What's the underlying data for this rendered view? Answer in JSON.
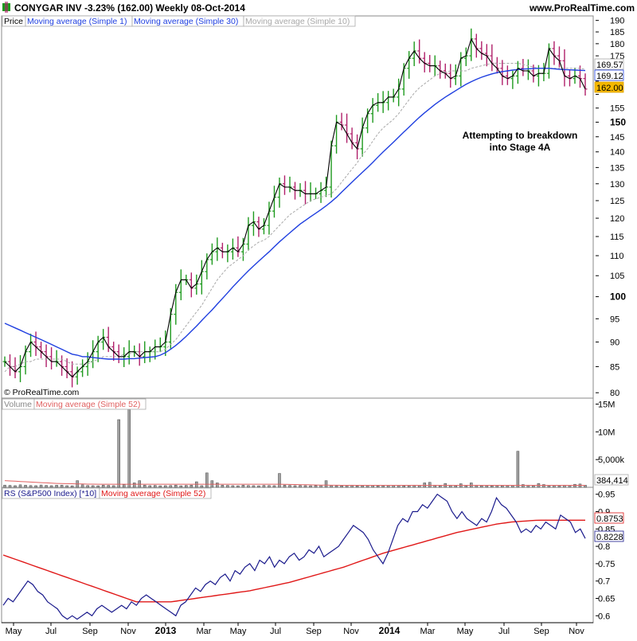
{
  "header": {
    "title": "CONYGAR INV   -3.23% (162.00)   Weekly   08-Oct-2014",
    "site": "www.ProRealTime.com"
  },
  "copyright": "© ProRealTime.com",
  "colors": {
    "up_bar": "#1e9a1e",
    "down_bar": "#b0206a",
    "sma1": "#000000",
    "sma30": "#1f3fe0",
    "sma10": "#a8a8a8",
    "volume_bar": "#a0a0a0",
    "volume_ma": "#e06060",
    "rs_line": "#1a1a8c",
    "rs_ma": "#e01818"
  },
  "chart_data": [
    {
      "type": "line",
      "panel": "price",
      "legend": [
        "Price",
        "Moving average (Simple 1)",
        "Moving average (Simple 30)",
        "Moving average (Simple 10)"
      ],
      "y_scale": "log",
      "ylim": [
        79,
        192
      ],
      "y_ticks": [
        80,
        85,
        90,
        95,
        100,
        105,
        110,
        115,
        120,
        125,
        130,
        135,
        140,
        145,
        150,
        155,
        160,
        165,
        170,
        175,
        180,
        185,
        190
      ],
      "y_ticks_bold": [
        100,
        150
      ],
      "y_tick_labels_hidden": [
        160,
        165,
        170
      ],
      "value_labels": [
        {
          "text": "169.57",
          "series": "sma10"
        },
        {
          "text": "169.12",
          "series": "sma30"
        },
        {
          "text": "162.00",
          "series": "close"
        }
      ],
      "annotation": [
        "Attempting to breakdown",
        "into Stage 4A"
      ],
      "series": [
        {
          "name": "Moving average (Simple 1)",
          "key": "close",
          "values": [
            86,
            85,
            84,
            85,
            88,
            90,
            89,
            88,
            87,
            86,
            86,
            85,
            84,
            83,
            84,
            85,
            86,
            88,
            90,
            91,
            89,
            88,
            87,
            87,
            88,
            88,
            87,
            88,
            88,
            89,
            89,
            90,
            96,
            101,
            104,
            104,
            102,
            103,
            106,
            109,
            111,
            112,
            111,
            111,
            112,
            111,
            113,
            118,
            119,
            117,
            118,
            122,
            126,
            130,
            129,
            129,
            128,
            128,
            127,
            127,
            127,
            128,
            129,
            142,
            150,
            149,
            146,
            143,
            141,
            148,
            153,
            156,
            157,
            157,
            159,
            159,
            162,
            170,
            174,
            177,
            174,
            172,
            171,
            171,
            169,
            168,
            166,
            167,
            174,
            175,
            182,
            178,
            176,
            175,
            172,
            170,
            167,
            166,
            167,
            170,
            169,
            169,
            167,
            168,
            168,
            178,
            175,
            173,
            167,
            166,
            167,
            166,
            162
          ]
        },
        {
          "name": "Moving average (Simple 10)",
          "key": "sma10",
          "values": [
            84,
            85,
            85,
            85.5,
            86,
            86,
            86.5,
            86.5,
            86.5,
            86.5,
            86.5,
            86.5,
            86,
            85.5,
            85.5,
            85.5,
            85.5,
            86,
            86.5,
            87,
            87,
            87,
            87,
            87.5,
            87.5,
            88,
            88,
            88,
            88,
            88,
            88,
            88.5,
            89.5,
            90.5,
            92,
            93.5,
            95,
            96.5,
            98,
            100,
            102,
            104,
            105.5,
            107,
            108,
            109,
            110,
            111.5,
            112.5,
            113.5,
            114,
            115,
            116.5,
            118,
            119.5,
            121,
            122,
            123,
            124,
            125,
            125.5,
            126,
            126.5,
            127,
            128.5,
            130.5,
            132.5,
            134.5,
            136.5,
            139,
            141,
            143.5,
            146,
            148,
            149.5,
            151,
            153,
            155.5,
            158,
            160.5,
            162.5,
            164,
            165.5,
            167,
            168,
            168.5,
            169,
            169,
            169,
            169,
            170,
            170.5,
            171,
            171.5,
            172,
            172,
            172,
            172,
            172,
            172,
            171.5,
            171,
            170.5,
            170,
            170,
            170,
            170,
            170,
            170,
            170,
            170,
            170,
            169.57
          ]
        },
        {
          "name": "Moving average (Simple 30)",
          "key": "sma30",
          "values": [
            94,
            93.5,
            93,
            92.5,
            92,
            91.5,
            91,
            90.5,
            90,
            89.5,
            89,
            88.5,
            88,
            87.5,
            87.3,
            87,
            87,
            86.8,
            86.7,
            86.6,
            86.5,
            86.5,
            86.5,
            86.5,
            86.6,
            86.6,
            86.7,
            86.8,
            86.9,
            87,
            87.3,
            87.8,
            88.5,
            89.3,
            90.2,
            91.2,
            92.3,
            93.4,
            94.6,
            95.8,
            97,
            98.3,
            99.6,
            100.9,
            102.3,
            103.6,
            104.9,
            106.2,
            107.4,
            108.6,
            109.8,
            111,
            112.3,
            113.6,
            114.8,
            116,
            117.2,
            118.4,
            119.4,
            120.4,
            121.4,
            122.4,
            123.5,
            124.7,
            126,
            127.5,
            129,
            130.5,
            132,
            133.5,
            135,
            136.6,
            138.3,
            140,
            141.6,
            143.2,
            144.9,
            146.6,
            148.3,
            150,
            151.7,
            153.3,
            154.8,
            156.3,
            157.7,
            159,
            160.2,
            161.4,
            162.6,
            163.8,
            164.8,
            165.7,
            166.5,
            167.2,
            167.8,
            168.3,
            168.7,
            169,
            169.3,
            169.5,
            169.7,
            169.8,
            169.9,
            170,
            170,
            170,
            169.8,
            169.6,
            169.5,
            169.4,
            169.3,
            169.2,
            169.12
          ]
        }
      ]
    },
    {
      "type": "bar",
      "panel": "volume",
      "legend": [
        "Volume",
        "Moving average (Simple 52)"
      ],
      "ylim": [
        0,
        15500000
      ],
      "y_ticks": [
        5000000,
        10000000,
        15000000
      ],
      "y_tick_labels": [
        "5,000k",
        "10M",
        "15M"
      ],
      "value_label": "384,414",
      "series": [
        {
          "name": "Volume",
          "values": [
            400000,
            350000,
            300000,
            450000,
            380000,
            320000,
            300000,
            420000,
            350000,
            300000,
            380000,
            400000,
            300000,
            280000,
            1200000,
            450000,
            320000,
            300000,
            280000,
            400000,
            350000,
            300000,
            12200000,
            500000,
            14500000,
            800000,
            1200000,
            400000,
            300000,
            350000,
            280000,
            300000,
            320000,
            400000,
            280000,
            350000,
            400000,
            1000000,
            300000,
            2600000,
            1200000,
            800000,
            400000,
            350000,
            300000,
            280000,
            400000,
            320000,
            300000,
            280000,
            350000,
            320000,
            300000,
            2500000,
            400000,
            350000,
            300000,
            320000,
            300000,
            280000,
            320000,
            380000,
            1200000,
            350000,
            300000,
            280000,
            320000,
            400000,
            280000,
            300000,
            350000,
            320000,
            280000,
            300000,
            320000,
            380000,
            350000,
            280000,
            300000,
            400000,
            350000,
            800000,
            900000,
            400000,
            300000,
            700000,
            400000,
            300000,
            650000,
            300000,
            800000,
            400000,
            300000,
            350000,
            280000,
            350000,
            300000,
            320000,
            380000,
            6500000,
            500000,
            400000,
            300000,
            700000,
            500000,
            300000,
            350000,
            300000,
            400000,
            320000,
            550000,
            600000,
            384414
          ]
        },
        {
          "name": "Moving average (Simple 52)",
          "values": [
            1200000,
            1150000,
            1100000,
            1050000,
            1000000,
            950000,
            900000,
            850000,
            800000,
            750000,
            700000,
            680000,
            660000,
            640000,
            620000,
            600000,
            580000,
            570000,
            560000,
            560000,
            560000,
            560000,
            560000,
            560000,
            560000,
            560000,
            560000,
            560000,
            560000,
            560000,
            560000,
            560000,
            560000,
            560000,
            560000,
            560000,
            560000,
            560000,
            560000,
            560000,
            560000,
            560000,
            560000,
            560000,
            560000,
            560000,
            560000,
            560000,
            560000,
            560000,
            560000,
            560000,
            560000,
            560000,
            540000,
            520000,
            500000,
            480000,
            460000,
            440000,
            420000,
            400000,
            390000,
            380000,
            370000,
            360000,
            360000,
            360000,
            360000,
            360000,
            360000,
            360000,
            360000,
            360000,
            360000,
            360000,
            360000,
            360000,
            360000,
            360000,
            360000,
            360000,
            360000,
            360000,
            360000,
            360000,
            360000,
            360000,
            360000,
            360000,
            360000,
            360000,
            360000,
            360000,
            360000,
            360000,
            360000,
            360000,
            360000,
            360000,
            360000,
            360000,
            360000,
            360000,
            360000,
            360000,
            360000,
            360000,
            360000,
            360000,
            360000,
            360000,
            360000
          ]
        }
      ]
    },
    {
      "type": "line",
      "panel": "rs",
      "legend": [
        "RS (S&P500 Index) [*10]",
        "Moving average (Simple 52)"
      ],
      "ylim": [
        0.58,
        0.97
      ],
      "y_ticks": [
        0.6,
        0.65,
        0.7,
        0.75,
        0.8,
        0.85,
        0.9,
        0.95
      ],
      "value_labels": [
        {
          "text": "0.8753",
          "series": "rs_ma"
        },
        {
          "text": "0.8228",
          "series": "rs"
        }
      ],
      "x_tick_labels": [
        "May",
        "Jul",
        "Sep",
        "Nov",
        "2013",
        "Mar",
        "May",
        "Jul",
        "Sep",
        "Nov",
        "2014",
        "Mar",
        "May",
        "Jul",
        "Sep",
        "Nov"
      ],
      "x_tick_bold": [
        "2013",
        "2014"
      ],
      "series": [
        {
          "name": "RS (S&P500 Index) [*10]",
          "key": "rs",
          "values": [
            0.63,
            0.65,
            0.64,
            0.66,
            0.68,
            0.7,
            0.69,
            0.67,
            0.66,
            0.64,
            0.63,
            0.62,
            0.6,
            0.59,
            0.6,
            0.59,
            0.6,
            0.61,
            0.6,
            0.62,
            0.63,
            0.62,
            0.61,
            0.62,
            0.63,
            0.62,
            0.64,
            0.63,
            0.65,
            0.66,
            0.65,
            0.64,
            0.63,
            0.62,
            0.61,
            0.6,
            0.63,
            0.64,
            0.66,
            0.68,
            0.67,
            0.69,
            0.7,
            0.69,
            0.71,
            0.72,
            0.7,
            0.73,
            0.72,
            0.74,
            0.75,
            0.73,
            0.76,
            0.75,
            0.77,
            0.74,
            0.76,
            0.75,
            0.77,
            0.78,
            0.76,
            0.77,
            0.79,
            0.78,
            0.8,
            0.77,
            0.78,
            0.79,
            0.8,
            0.82,
            0.84,
            0.86,
            0.85,
            0.84,
            0.82,
            0.79,
            0.77,
            0.75,
            0.78,
            0.82,
            0.86,
            0.88,
            0.87,
            0.9,
            0.9,
            0.92,
            0.91,
            0.93,
            0.95,
            0.94,
            0.93,
            0.9,
            0.88,
            0.9,
            0.88,
            0.87,
            0.86,
            0.88,
            0.87,
            0.9,
            0.94,
            0.92,
            0.91,
            0.89,
            0.87,
            0.84,
            0.85,
            0.84,
            0.86,
            0.85,
            0.87,
            0.86,
            0.85,
            0.89,
            0.88,
            0.87,
            0.84,
            0.85,
            0.8228
          ]
        },
        {
          "name": "Moving average (Simple 52)",
          "key": "rs_ma",
          "values": [
            0.775,
            0.77,
            0.765,
            0.76,
            0.755,
            0.75,
            0.745,
            0.74,
            0.735,
            0.73,
            0.725,
            0.72,
            0.715,
            0.71,
            0.705,
            0.7,
            0.695,
            0.69,
            0.685,
            0.68,
            0.675,
            0.67,
            0.665,
            0.66,
            0.655,
            0.65,
            0.645,
            0.64,
            0.64,
            0.64,
            0.64,
            0.64,
            0.64,
            0.64,
            0.64,
            0.642,
            0.644,
            0.646,
            0.648,
            0.65,
            0.652,
            0.654,
            0.656,
            0.658,
            0.66,
            0.662,
            0.664,
            0.666,
            0.668,
            0.67,
            0.672,
            0.675,
            0.678,
            0.681,
            0.684,
            0.687,
            0.69,
            0.693,
            0.696,
            0.7,
            0.704,
            0.708,
            0.712,
            0.716,
            0.72,
            0.724,
            0.728,
            0.732,
            0.736,
            0.74,
            0.745,
            0.75,
            0.755,
            0.76,
            0.765,
            0.77,
            0.775,
            0.78,
            0.784,
            0.788,
            0.792,
            0.796,
            0.8,
            0.804,
            0.808,
            0.812,
            0.816,
            0.82,
            0.824,
            0.828,
            0.832,
            0.836,
            0.84,
            0.843,
            0.846,
            0.849,
            0.852,
            0.855,
            0.858,
            0.861,
            0.864,
            0.866,
            0.868,
            0.87,
            0.871,
            0.872,
            0.873,
            0.874,
            0.875,
            0.8753,
            0.8753,
            0.8753,
            0.8753,
            0.8753,
            0.8753,
            0.8753,
            0.8753,
            0.8753,
            0.8753
          ]
        }
      ]
    }
  ]
}
